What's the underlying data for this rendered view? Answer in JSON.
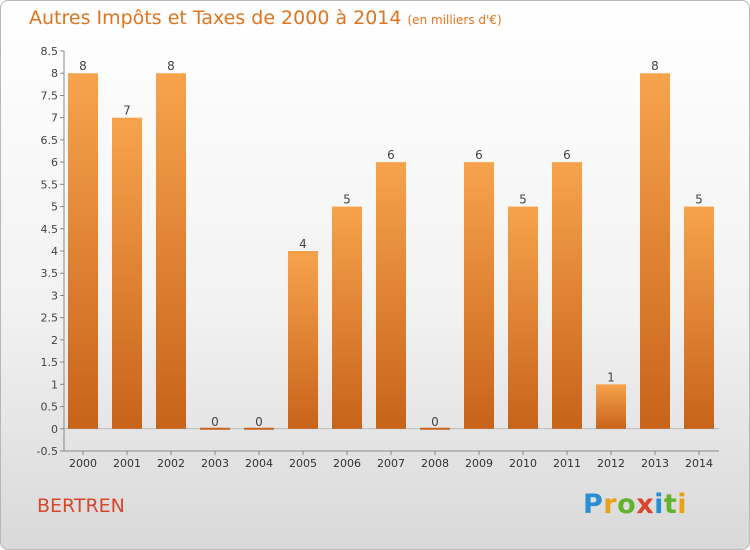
{
  "title": "Autres Impôts et Taxes de 2000 à 2014",
  "unit": "(en milliers d'€)",
  "location": "BERTREN",
  "logo": {
    "letters": [
      "P",
      "r",
      "o",
      "x",
      "i",
      "t",
      "i"
    ],
    "colors": [
      "#2a8fd0",
      "#e8a11c",
      "#64b32e",
      "#d8462b",
      "#2a8fd0",
      "#64b32e",
      "#e8a11c"
    ]
  },
  "chart_data": {
    "type": "bar",
    "categories": [
      "2000",
      "2001",
      "2002",
      "2003",
      "2004",
      "2005",
      "2006",
      "2007",
      "2008",
      "2009",
      "2010",
      "2011",
      "2012",
      "2013",
      "2014"
    ],
    "values": [
      8,
      7,
      8,
      0,
      0,
      4,
      5,
      6,
      0,
      6,
      5,
      6,
      1,
      8,
      5
    ],
    "data_labels": [
      "8",
      "7",
      "8",
      "0",
      "0",
      "4",
      "5",
      "6",
      "0",
      "6",
      "5",
      "6",
      "1",
      "8",
      "5"
    ],
    "yticks": [
      "8.5",
      "8",
      "7.5",
      "7",
      "6.5",
      "6",
      "5.5",
      "5",
      "4.5",
      "4",
      "3.5",
      "3",
      "2.5",
      "2",
      "1.5",
      "1",
      "0.5",
      "0",
      "-0.5"
    ],
    "ylim": [
      -0.5,
      8.5
    ],
    "grid": false,
    "bar_color": "#f7a34d",
    "bar_color_dark": "#c8631a"
  }
}
